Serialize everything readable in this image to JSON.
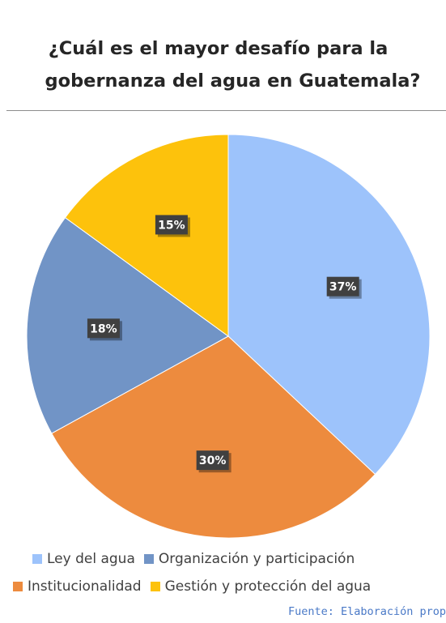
{
  "title_lines": [
    "¿Cuál es el mayor desafío para la",
    "gobernanza del agua en Guatemala?"
  ],
  "source": "Fuente: Elaboración propia",
  "chart_data": {
    "type": "pie",
    "title": "¿Cuál es el mayor desafío para la gobernanza del agua en Guatemala?",
    "categories": [
      "Ley del agua",
      "Institucionalidad",
      "Organización y participación",
      "Gestión y protección del agua"
    ],
    "values": [
      37,
      30,
      18,
      15
    ],
    "labels": [
      "37%",
      "30%",
      "18%",
      "15%"
    ],
    "colors": [
      "#9dc3fb",
      "#ed8b3e",
      "#7194c6",
      "#fdc20c"
    ],
    "start": "12 o'clock, clockwise",
    "legend_position": "bottom",
    "legend_rows": [
      [
        {
          "label": "Ley del agua",
          "color": "#9dc3fb"
        },
        {
          "label": "Organización y participación",
          "color": "#7194c6"
        }
      ],
      [
        {
          "label": "Institucionalidad",
          "color": "#ed8b3e"
        },
        {
          "label": "Gestión y protección del agua",
          "color": "#fdc20c"
        }
      ]
    ]
  }
}
